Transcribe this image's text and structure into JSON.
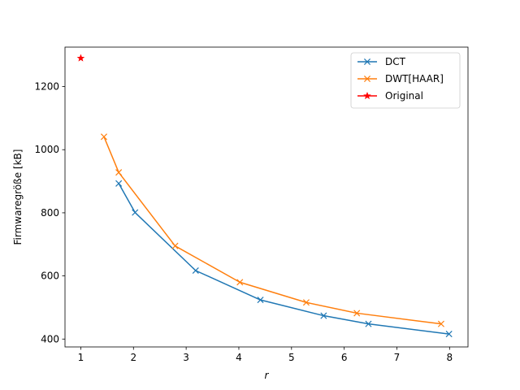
{
  "chart_data": {
    "type": "line",
    "xlabel": "r",
    "ylabel": "Firmwaregröße [kB]",
    "xlim": [
      0.7,
      8.35
    ],
    "ylim": [
      375,
      1325
    ],
    "xticks": [
      1,
      2,
      3,
      4,
      5,
      6,
      7,
      8
    ],
    "yticks": [
      400,
      600,
      800,
      1000,
      1200
    ],
    "grid": false,
    "legend_position": "top-right",
    "series": [
      {
        "name": "DCT",
        "color": "#1f77b4",
        "marker": "x",
        "x": [
          1.72,
          2.03,
          3.18,
          4.41,
          5.61,
          6.46,
          7.99
        ],
        "y": [
          893,
          801,
          617,
          524,
          474,
          448,
          416
        ]
      },
      {
        "name": "DWT[HAAR]",
        "color": "#ff7f0e",
        "marker": "x",
        "x": [
          1.44,
          1.72,
          2.79,
          4.02,
          5.28,
          6.24,
          7.84
        ],
        "y": [
          1041,
          928,
          695,
          580,
          516,
          482,
          448
        ]
      },
      {
        "name": "Original",
        "color": "#ff0000",
        "marker": "star",
        "x": [
          1.0
        ],
        "y": [
          1290
        ]
      }
    ]
  }
}
